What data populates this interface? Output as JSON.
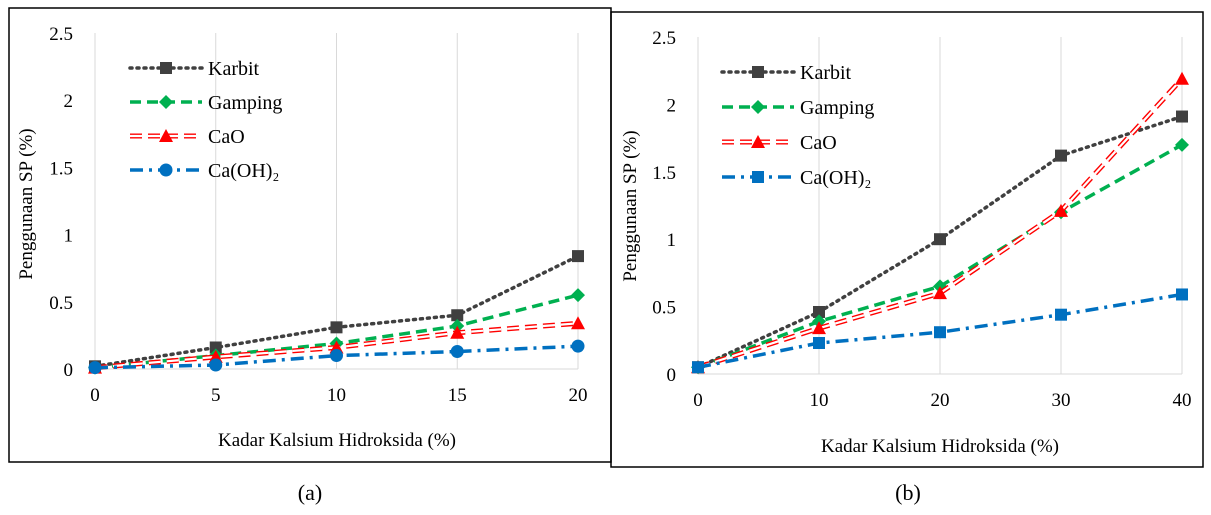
{
  "chart_data": [
    {
      "type": "line",
      "caption": "(a)",
      "xlabel": "Kadar Kalsium Hidroksida (%)",
      "ylabel": "Penggunaan SP (%)",
      "x": [
        0,
        5,
        10,
        15,
        20
      ],
      "xticks": [
        "0",
        "5",
        "10",
        "15",
        "20"
      ],
      "yticks": [
        "0",
        "0.5",
        "1",
        "1.5",
        "2",
        "2.5"
      ],
      "xlim": [
        0,
        20
      ],
      "ylim": [
        0,
        2.5
      ],
      "grid": "vertical",
      "legend_position": "top-left",
      "series": [
        {
          "name": "Karbit",
          "values": [
            0.02,
            0.16,
            0.31,
            0.4,
            0.84
          ],
          "color": "#404040",
          "marker": "square",
          "dash": "dotted"
        },
        {
          "name": "Gamping",
          "values": [
            0.01,
            0.1,
            0.19,
            0.32,
            0.55
          ],
          "color": "#00b050",
          "marker": "diamond",
          "dash": "dashed"
        },
        {
          "name": "CaO",
          "values": [
            0.01,
            0.09,
            0.16,
            0.27,
            0.34
          ],
          "color": "#ff0000",
          "marker": "triangle",
          "dash": "double-dashed"
        },
        {
          "name": "Ca(OH)₂",
          "values": [
            0.01,
            0.03,
            0.1,
            0.13,
            0.17
          ],
          "color": "#0070c0",
          "marker": "circle",
          "dash": "dash-dot"
        }
      ]
    },
    {
      "type": "line",
      "caption": "(b)",
      "xlabel": "Kadar Kalsium Hidroksida (%)",
      "ylabel": "Penggunaan SP (%)",
      "x": [
        0,
        10,
        20,
        30,
        40
      ],
      "xticks": [
        "0",
        "10",
        "20",
        "30",
        "40"
      ],
      "yticks": [
        "0",
        "0.5",
        "1",
        "1.5",
        "2",
        "2.5"
      ],
      "xlim": [
        0,
        40
      ],
      "ylim": [
        0,
        2.5
      ],
      "grid": "vertical",
      "legend_position": "top-left",
      "series": [
        {
          "name": "Karbit",
          "values": [
            0.05,
            0.46,
            1.0,
            1.62,
            1.91
          ],
          "color": "#404040",
          "marker": "square",
          "dash": "dotted"
        },
        {
          "name": "Gamping",
          "values": [
            0.05,
            0.39,
            0.65,
            1.2,
            1.7
          ],
          "color": "#00b050",
          "marker": "diamond",
          "dash": "dashed"
        },
        {
          "name": "CaO",
          "values": [
            0.05,
            0.34,
            0.6,
            1.21,
            2.19
          ],
          "color": "#ff0000",
          "marker": "triangle",
          "dash": "double-dashed"
        },
        {
          "name": "Ca(OH)₂",
          "values": [
            0.05,
            0.23,
            0.31,
            0.44,
            0.59
          ],
          "color": "#0070c0",
          "marker": "square",
          "dash": "dash-dot"
        }
      ]
    }
  ]
}
